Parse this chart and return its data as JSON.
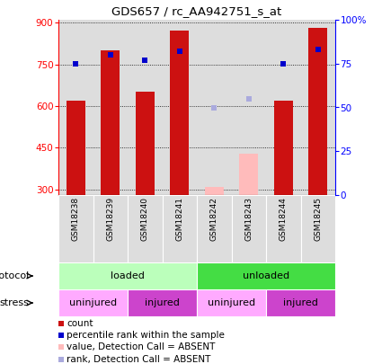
{
  "title": "GDS657 / rc_AA942751_s_at",
  "samples": [
    "GSM18238",
    "GSM18239",
    "GSM18240",
    "GSM18241",
    "GSM18242",
    "GSM18243",
    "GSM18244",
    "GSM18245"
  ],
  "count_values": [
    620,
    800,
    650,
    870,
    null,
    null,
    620,
    880
  ],
  "count_absent_values": [
    null,
    null,
    null,
    null,
    310,
    430,
    null,
    null
  ],
  "rank_values": [
    75,
    80,
    77,
    82,
    null,
    null,
    75,
    83
  ],
  "rank_absent_values": [
    null,
    null,
    null,
    null,
    50,
    55,
    null,
    null
  ],
  "ylim_left": [
    280,
    910
  ],
  "ylim_right": [
    0,
    100
  ],
  "yticks_left": [
    300,
    450,
    600,
    750,
    900
  ],
  "yticks_right": [
    0,
    25,
    50,
    75,
    100
  ],
  "ytick_labels_left": [
    "300",
    "450",
    "600",
    "750",
    "900"
  ],
  "ytick_labels_right": [
    "0",
    "25",
    "50",
    "75",
    "100%"
  ],
  "bar_color_present": "#cc1111",
  "bar_color_absent": "#ffbbbb",
  "dot_color_present": "#0000cc",
  "dot_color_absent": "#aaaadd",
  "bg_color": "#dddddd",
  "protocol_groups": [
    {
      "label": "loaded",
      "start": 0,
      "end": 4,
      "color": "#bbffbb"
    },
    {
      "label": "unloaded",
      "start": 4,
      "end": 8,
      "color": "#44dd44"
    }
  ],
  "stress_groups": [
    {
      "label": "uninjured",
      "start": 0,
      "end": 2,
      "color": "#ffaaff"
    },
    {
      "label": "injured",
      "start": 2,
      "end": 4,
      "color": "#cc44cc"
    },
    {
      "label": "uninjured",
      "start": 4,
      "end": 6,
      "color": "#ffaaff"
    },
    {
      "label": "injured",
      "start": 6,
      "end": 8,
      "color": "#cc44cc"
    }
  ],
  "legend_items": [
    {
      "label": "count",
      "color": "#cc1111"
    },
    {
      "label": "percentile rank within the sample",
      "color": "#0000cc"
    },
    {
      "label": "value, Detection Call = ABSENT",
      "color": "#ffbbbb"
    },
    {
      "label": "rank, Detection Call = ABSENT",
      "color": "#aaaadd"
    }
  ]
}
